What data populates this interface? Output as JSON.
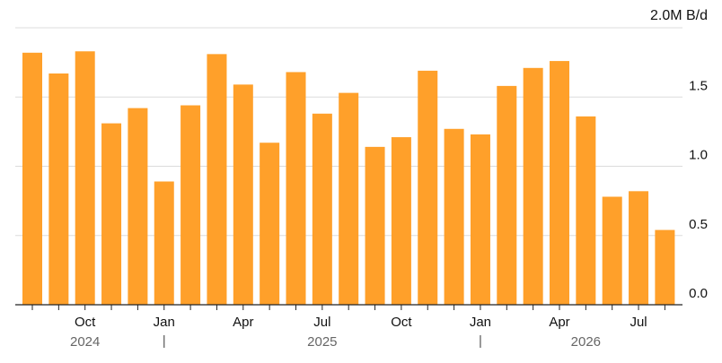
{
  "chart_data": {
    "type": "bar",
    "title": "",
    "xlabel": "",
    "ylabel": "",
    "unit_label": "2.0M B/d",
    "ylim": [
      0,
      2.0
    ],
    "y_ticks": [
      {
        "value": 0.5,
        "label": "0.5"
      },
      {
        "value": 1.0,
        "label": "1.0"
      },
      {
        "value": 1.5,
        "label": "1.5"
      },
      {
        "value": 0.0,
        "label": "0.0"
      }
    ],
    "grid": true,
    "color": "#ffa02a",
    "categories": [
      "2024-08",
      "2024-09",
      "2024-10",
      "2024-11",
      "2024-12",
      "2025-01",
      "2025-02",
      "2025-03",
      "2025-04",
      "2025-05",
      "2025-06",
      "2025-07",
      "2025-08",
      "2025-09",
      "2025-10",
      "2025-11",
      "2025-12",
      "2026-01",
      "2026-02",
      "2026-03",
      "2026-04",
      "2026-05",
      "2026-06",
      "2026-07",
      "2026-08"
    ],
    "values": [
      1.82,
      1.67,
      1.83,
      1.31,
      1.42,
      0.89,
      1.44,
      1.81,
      1.59,
      1.17,
      1.68,
      1.38,
      1.53,
      1.14,
      1.21,
      1.69,
      1.27,
      1.23,
      1.58,
      1.71,
      1.76,
      1.36,
      0.78,
      0.82,
      0.54
    ],
    "month_labels": [
      {
        "index": 2,
        "label": "Oct"
      },
      {
        "index": 5,
        "label": "Jan"
      },
      {
        "index": 8,
        "label": "Apr"
      },
      {
        "index": 11,
        "label": "Jul"
      },
      {
        "index": 14,
        "label": "Oct"
      },
      {
        "index": 17,
        "label": "Jan"
      },
      {
        "index": 20,
        "label": "Apr"
      },
      {
        "index": 23,
        "label": "Jul"
      }
    ],
    "year_labels": [
      {
        "index": 2,
        "label": "2024"
      },
      {
        "index": 11,
        "label": "2025"
      },
      {
        "index": 21,
        "label": "2026"
      }
    ],
    "year_separators": [
      5,
      17
    ]
  }
}
